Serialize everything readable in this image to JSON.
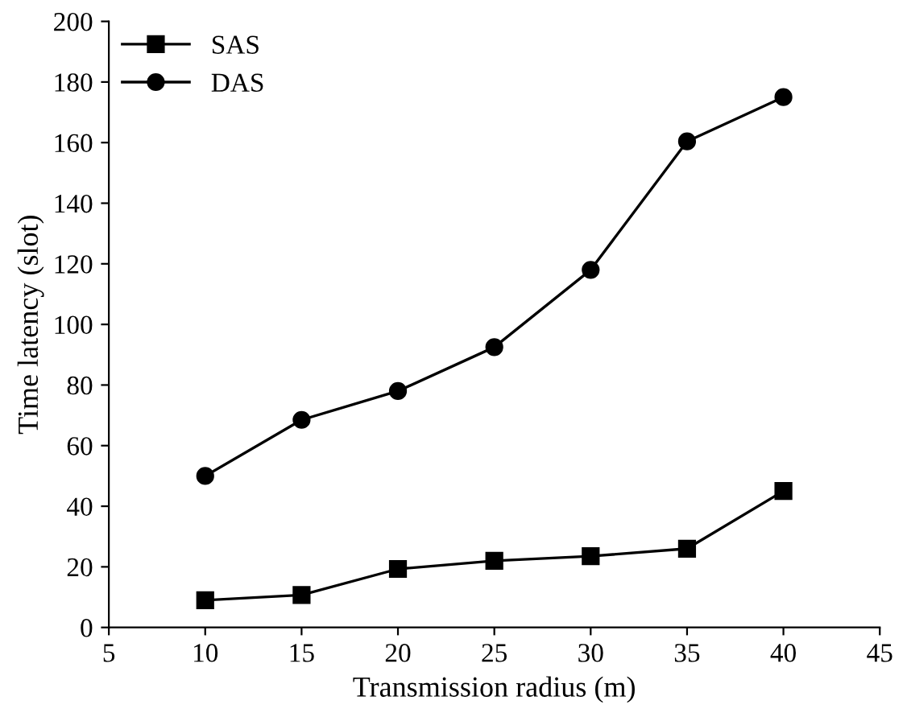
{
  "chart_data": {
    "type": "line",
    "xlabel": "Transmission radius (m)",
    "ylabel": "Time latency (slot)",
    "x": [
      10,
      15,
      20,
      25,
      30,
      35,
      40
    ],
    "series": [
      {
        "name": "SAS",
        "color": "#000000",
        "marker": "square",
        "values": [
          9,
          10.7,
          19.3,
          22,
          23.5,
          26,
          45
        ]
      },
      {
        "name": "DAS",
        "color": "#000000",
        "marker": "circle",
        "values": [
          50,
          68.5,
          78,
          92.5,
          118,
          160.4,
          175
        ]
      }
    ],
    "xlim": [
      5,
      45
    ],
    "xticks": [
      5,
      10,
      15,
      20,
      25,
      30,
      35,
      40,
      45
    ],
    "ylim": [
      0,
      200
    ],
    "yticks": [
      0,
      20,
      40,
      60,
      80,
      100,
      120,
      140,
      160,
      180,
      200
    ],
    "grid": false,
    "legend": "top left",
    "line_style": "solid"
  }
}
